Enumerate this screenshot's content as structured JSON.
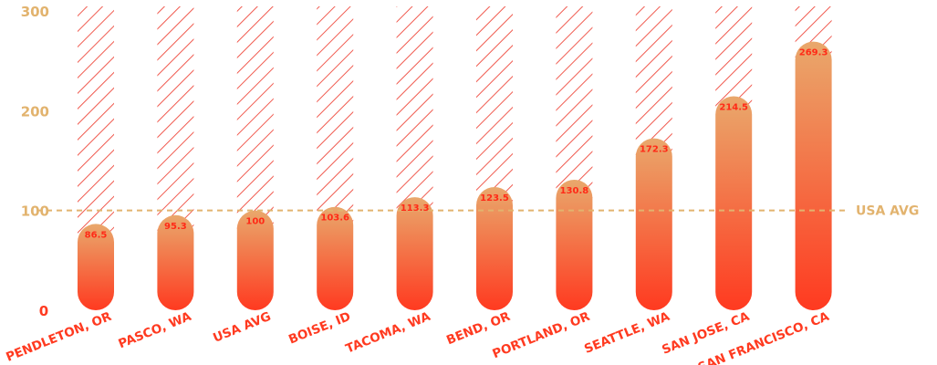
{
  "colors": {
    "axis_text": "#e2b36e",
    "avg_line": "#e2b36e",
    "hatch": "#f05a4f",
    "bar_top": "#e9a86c",
    "bar_bottom": "#ff3a20",
    "value_text": "#ff2a17",
    "category_text": "#ff3a20"
  },
  "chart_data": {
    "type": "bar",
    "categories": [
      "PENDLETON, OR",
      "PASCO, WA",
      "USA AVG",
      "BOISE, ID",
      "TACOMA, WA",
      "BEND, OR",
      "PORTLAND, OR",
      "SEATTLE, WA",
      "SAN JOSE, CA",
      "SAN FRANCISCO, CA"
    ],
    "values": [
      86.5,
      95.3,
      100,
      103.6,
      113.3,
      123.5,
      130.8,
      172.3,
      214.5,
      269.3
    ],
    "value_labels": [
      "86.5",
      "95.3",
      "100",
      "103.6",
      "113.3",
      "123.5",
      "130.8",
      "172.3",
      "214.5",
      "269.3"
    ],
    "ylim": [
      0,
      300
    ],
    "yticks": [
      0,
      100,
      200,
      300
    ],
    "ytick_labels": [
      "0",
      "100",
      "200",
      "300"
    ],
    "reference_line": {
      "value": 100,
      "label": "USA AVG"
    },
    "grid": false
  }
}
